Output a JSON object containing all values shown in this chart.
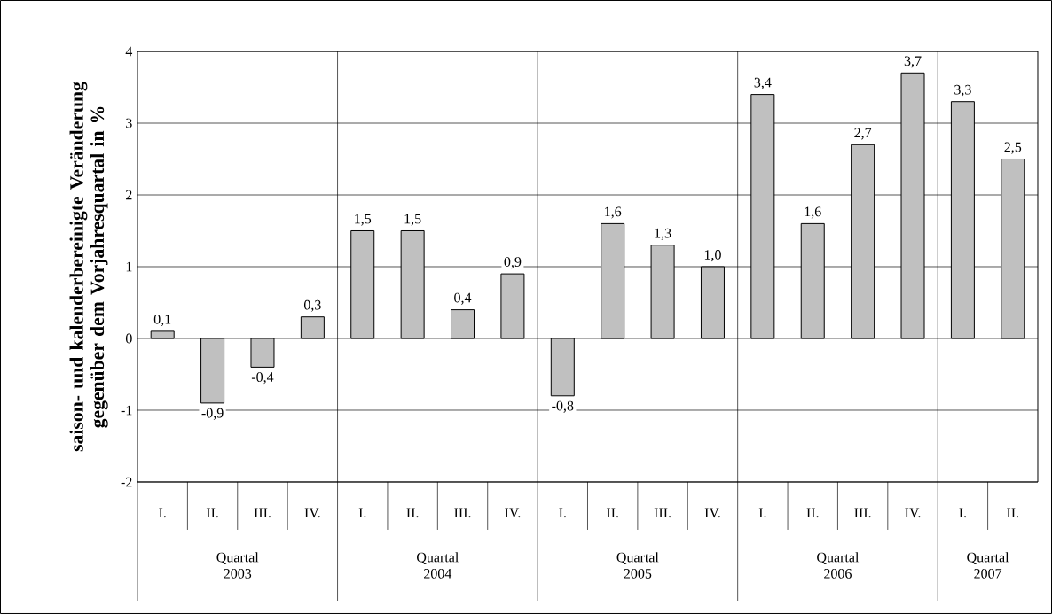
{
  "chart_data": {
    "type": "bar",
    "ylabel": "saison- und kalenderbereinigte Veränderung gegenüber dem Vorjahresquartal in %",
    "categories": [
      "I.",
      "II.",
      "III.",
      "IV.",
      "I.",
      "II.",
      "III.",
      "IV.",
      "I.",
      "II.",
      "III.",
      "IV.",
      "I.",
      "II.",
      "III.",
      "IV.",
      "I.",
      "II."
    ],
    "values": [
      0.1,
      -0.9,
      -0.4,
      0.3,
      1.5,
      1.5,
      0.4,
      0.9,
      -0.8,
      1.6,
      1.3,
      1.0,
      3.4,
      1.6,
      2.7,
      3.7,
      3.3,
      2.5
    ],
    "value_labels": [
      "0,1",
      "-0,9",
      "-0,4",
      "0,3",
      "1,5",
      "1,5",
      "0,4",
      "0,9",
      "-0,8",
      "1,6",
      "1,3",
      "1,0",
      "3,4",
      "1,6",
      "2,7",
      "3,7",
      "3,3",
      "2,5"
    ],
    "color": "#c0c0c0",
    "ylim": [
      -2,
      4
    ],
    "yticks": [
      -2,
      -1,
      0,
      1,
      2,
      3,
      4
    ],
    "grid": "y",
    "annotations": [
      "Quartal 2003",
      "Quartal 2004",
      "Quartal 2005",
      "Quartal 2006",
      "Quartal 2007"
    ]
  }
}
